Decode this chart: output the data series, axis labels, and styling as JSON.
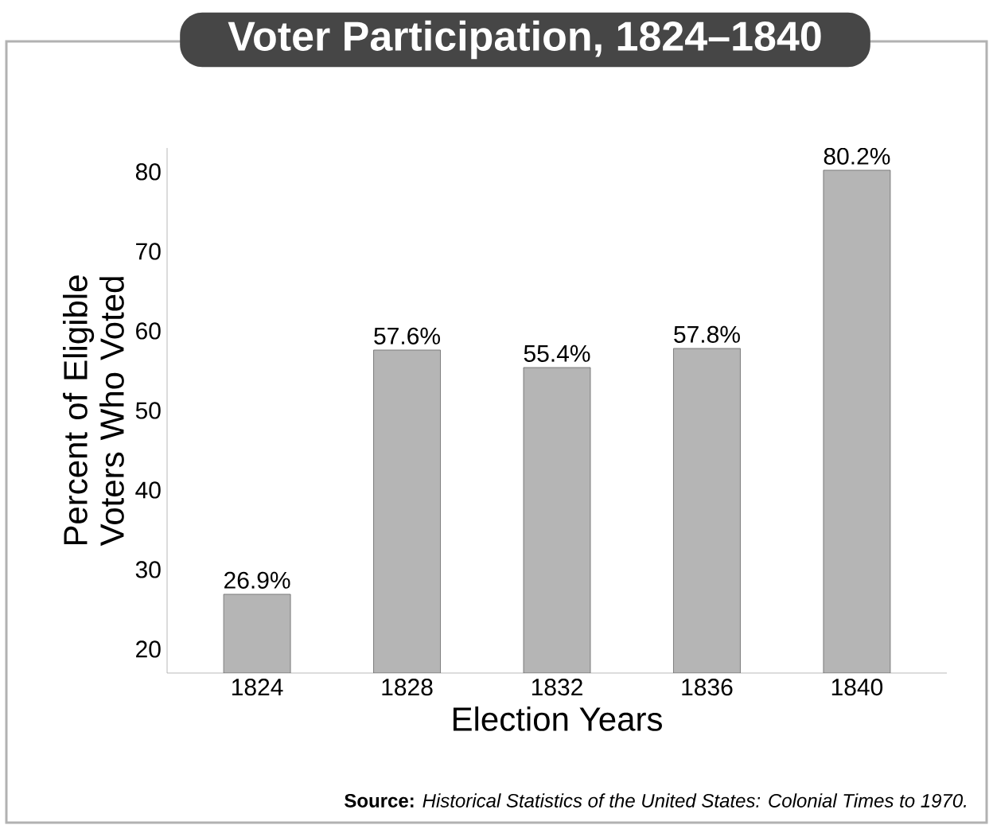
{
  "chart_data": {
    "type": "bar",
    "title": "Voter Participation, 1824–1840",
    "xlabel": "Election Years",
    "ylabel": "Percent of Eligible Voters Who Voted",
    "categories": [
      "1824",
      "1828",
      "1832",
      "1836",
      "1840"
    ],
    "values": [
      26.9,
      57.6,
      55.4,
      57.8,
      80.2
    ],
    "value_labels": [
      "26.9%",
      "57.6%",
      "55.4%",
      "57.8%",
      "80.2%"
    ],
    "color": "#b5b5b5",
    "ylim": [
      17,
      83
    ],
    "yticks": [
      20,
      30,
      40,
      50,
      60,
      70,
      80
    ],
    "annotations": [
      "**Source:** *Historical Statistics of the United States: Colonial Times to 1970.*"
    ]
  }
}
